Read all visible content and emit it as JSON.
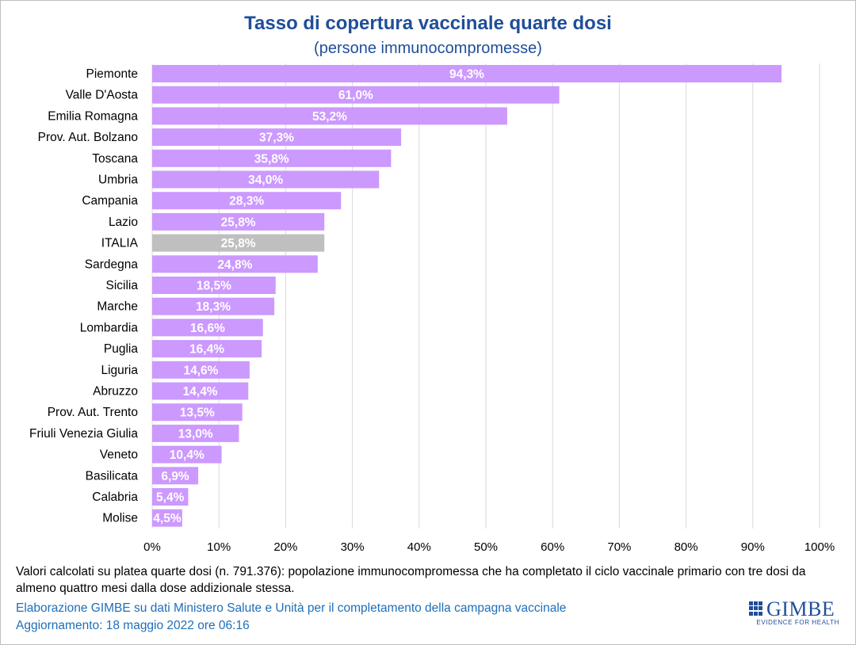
{
  "chart_data": {
    "type": "bar",
    "orientation": "horizontal",
    "title": "Tasso di copertura vaccinale quarte dosi",
    "subtitle": "(persone immunocompromesse)",
    "xlim": [
      0,
      100
    ],
    "x_ticks": [
      "0%",
      "10%",
      "20%",
      "30%",
      "40%",
      "50%",
      "60%",
      "70%",
      "80%",
      "90%",
      "100%"
    ],
    "categories": [
      "Piemonte",
      "Valle D'Aosta",
      "Emilia Romagna",
      "Prov. Aut. Bolzano",
      "Toscana",
      "Umbria",
      "Campania",
      "Lazio",
      "ITALIA",
      "Sardegna",
      "Sicilia",
      "Marche",
      "Lombardia",
      "Puglia",
      "Liguria",
      "Abruzzo",
      "Prov. Aut. Trento",
      "Friuli Venezia Giulia",
      "Veneto",
      "Basilicata",
      "Calabria",
      "Molise"
    ],
    "values": [
      94.3,
      61.0,
      53.2,
      37.3,
      35.8,
      34.0,
      28.3,
      25.8,
      25.8,
      24.8,
      18.5,
      18.3,
      16.6,
      16.4,
      14.6,
      14.4,
      13.5,
      13.0,
      10.4,
      6.9,
      5.4,
      4.5
    ],
    "labels": [
      "94,3%",
      "61,0%",
      "53,2%",
      "37,3%",
      "35,8%",
      "34,0%",
      "28,3%",
      "25,8%",
      "25,8%",
      "24,8%",
      "18,5%",
      "18,3%",
      "16,6%",
      "16,4%",
      "14,6%",
      "14,4%",
      "13,5%",
      "13,0%",
      "10,4%",
      "6,9%",
      "5,4%",
      "4,5%"
    ],
    "highlight": "ITALIA",
    "colors": {
      "bar": "#cc99ff",
      "highlight": "#bfbfbf",
      "grid": "#d9d9d9",
      "label": "#ffffff"
    }
  },
  "footer": {
    "note": "Valori calcolati su platea quarte dosi (n. 791.376): popolazione immunocompromessa che ha completato il ciclo vaccinale primario con tre dosi da almeno quattro mesi dalla dose addizionale stessa.",
    "credit1": "Elaborazione GIMBE su dati Ministero Salute e Unità per il completamento della campagna vaccinale",
    "credit2": "Aggiornamento: 18 maggio 2022 ore 06:16"
  },
  "logo": {
    "name": "GIMBE",
    "tagline": "EVIDENCE FOR HEALTH",
    "color": "#1f4e9a"
  }
}
